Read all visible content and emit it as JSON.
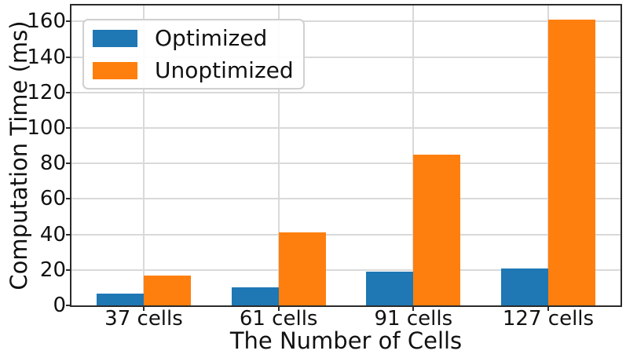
{
  "chart_data": {
    "type": "bar",
    "title": "",
    "categories": [
      "37 cells",
      "61 cells",
      "91 cells",
      "127 cells"
    ],
    "series": [
      {
        "name": "Optimized",
        "color": "#1f77b4",
        "values": [
          6.8,
          10.4,
          19,
          21
        ]
      },
      {
        "name": "Unoptimized",
        "color": "#ff7f0e",
        "values": [
          17,
          41,
          85,
          161
        ]
      }
    ],
    "xlabel": "The Number of Cells",
    "ylabel": "Computation Time (ms)",
    "ylim": [
      0,
      169
    ],
    "yticks": [
      0,
      20,
      40,
      60,
      80,
      100,
      120,
      140,
      160
    ],
    "grid": true,
    "bar_width_units": 0.35,
    "legend_position": "upper left",
    "colors": {
      "grid": "#d9d9d9",
      "spine": "#2b2b2b",
      "text": "#111111",
      "background": "#ffffff"
    }
  }
}
